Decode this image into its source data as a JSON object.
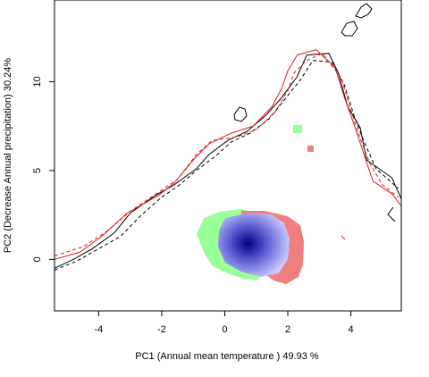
{
  "chart_data": {
    "type": "scatter",
    "xlabel": "PC1 (Annual mean temperature ) 49.93 %",
    "ylabel": "PC2 (Decrease Annual precipitation) 30.24%",
    "xlim": [
      -5.4,
      5.6
    ],
    "ylim": [
      -2.9,
      14.6
    ],
    "xticks": [
      -4,
      -2,
      0,
      2,
      4
    ],
    "yticks": [
      0,
      5,
      10
    ],
    "grid": false,
    "colors": {
      "contour_black": "#000000",
      "contour_red": "#e31a1c",
      "green": "#99ff99",
      "red": "#f08080",
      "blue_dark": "#000080",
      "blue_light": "#c8c8ff"
    },
    "series": [
      {
        "style": "solid",
        "color": "#000000",
        "points": [
          [
            -5.4,
            -0.5
          ],
          [
            -4.8,
            0
          ],
          [
            -4.2,
            0.6
          ],
          [
            -3.5,
            1.5
          ],
          [
            -3,
            2.6
          ],
          [
            -2.2,
            3.6
          ],
          [
            -1.6,
            4.2
          ],
          [
            -0.9,
            5.1
          ],
          [
            -0.5,
            5.9
          ],
          [
            0.1,
            6.7
          ],
          [
            0.7,
            7.2
          ],
          [
            1.3,
            8.1
          ],
          [
            1.8,
            9.1
          ],
          [
            2.3,
            10.3
          ],
          [
            2.6,
            11.5
          ],
          [
            3.3,
            11.6
          ],
          [
            3.6,
            10.5
          ],
          [
            3.9,
            8.6
          ],
          [
            4.3,
            7.4
          ],
          [
            4.5,
            5.6
          ],
          [
            5.3,
            4.6
          ],
          [
            5.6,
            3.4
          ]
        ]
      },
      {
        "style": "dashed",
        "color": "#000000",
        "points": [
          [
            -5.4,
            -0.6
          ],
          [
            -4.7,
            -0.1
          ],
          [
            -4.1,
            0.5
          ],
          [
            -3.3,
            1.3
          ],
          [
            -2.7,
            2.4
          ],
          [
            -2,
            3.5
          ],
          [
            -1.5,
            4.1
          ],
          [
            -0.9,
            5
          ],
          [
            -0.3,
            5.8
          ],
          [
            0.2,
            6.6
          ],
          [
            0.8,
            7.1
          ],
          [
            1.4,
            7.9
          ],
          [
            1.9,
            9
          ],
          [
            2.4,
            10.1
          ],
          [
            2.8,
            11.2
          ],
          [
            3.4,
            11.1
          ],
          [
            3.8,
            9.8
          ],
          [
            4.1,
            8.1
          ],
          [
            4.4,
            6.7
          ],
          [
            4.8,
            5.1
          ],
          [
            5.5,
            4
          ]
        ]
      },
      {
        "style": "solid",
        "color": "#e31a1c",
        "points": [
          [
            -5.4,
            0
          ],
          [
            -4.6,
            0.4
          ],
          [
            -3.9,
            1.3
          ],
          [
            -3.1,
            2.6
          ],
          [
            -2.1,
            3.6
          ],
          [
            -1.6,
            4.3
          ],
          [
            -1,
            5.6
          ],
          [
            -0.5,
            6.5
          ],
          [
            0.2,
            7.1
          ],
          [
            0.9,
            7.5
          ],
          [
            1.5,
            8.6
          ],
          [
            1.8,
            9.6
          ],
          [
            2,
            10.6
          ],
          [
            2.3,
            11.5
          ],
          [
            2.9,
            11.8
          ],
          [
            3.5,
            10.8
          ],
          [
            3.8,
            9.1
          ],
          [
            4.1,
            7.6
          ],
          [
            4.4,
            6
          ],
          [
            4.7,
            4.4
          ],
          [
            5.3,
            3.7
          ],
          [
            5.6,
            3
          ]
        ]
      },
      {
        "style": "dashed",
        "color": "#e31a1c",
        "points": [
          [
            -5.4,
            0.2
          ],
          [
            -4.5,
            0.7
          ],
          [
            -3.8,
            1.5
          ],
          [
            -3,
            2.7
          ],
          [
            -2,
            3.9
          ],
          [
            -1.5,
            4.5
          ],
          [
            -0.9,
            5.9
          ],
          [
            -0.4,
            6.7
          ],
          [
            0.4,
            6.9
          ],
          [
            1,
            7.3
          ],
          [
            1.6,
            8.3
          ],
          [
            2,
            9.5
          ],
          [
            2.2,
            10.5
          ],
          [
            2.6,
            11.2
          ],
          [
            3.1,
            11.6
          ],
          [
            3.7,
            10.2
          ],
          [
            4,
            8.4
          ],
          [
            4.3,
            6.8
          ],
          [
            4.6,
            5.4
          ],
          [
            5,
            4.2
          ],
          [
            5.5,
            3.5
          ]
        ]
      }
    ]
  }
}
